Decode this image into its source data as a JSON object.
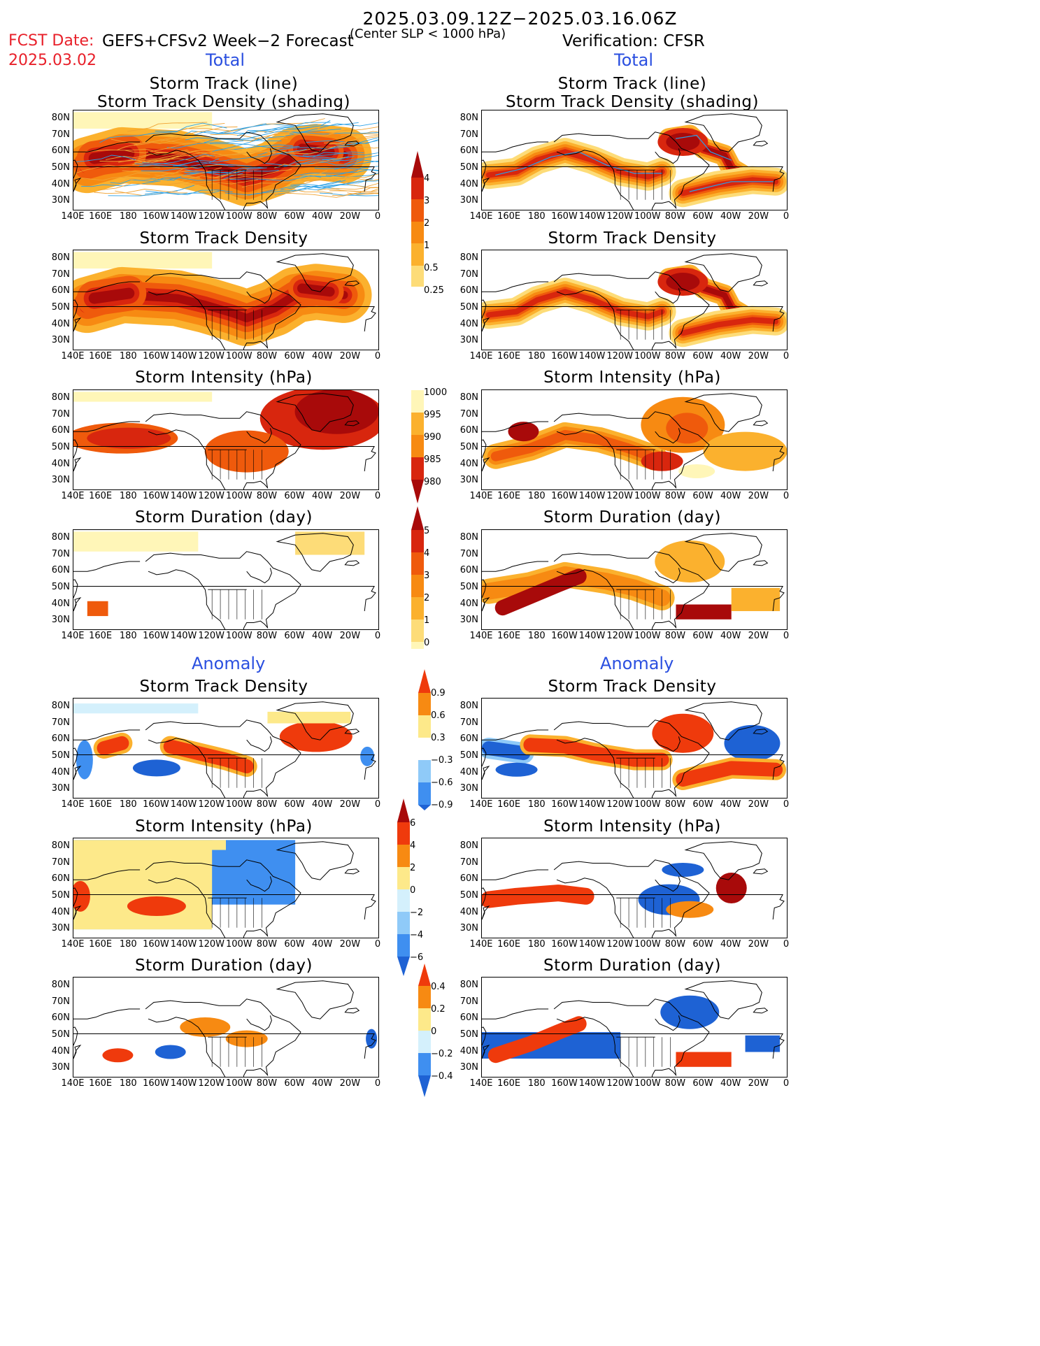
{
  "header": {
    "period": "2025.03.09.12Z−2025.03.16.06Z",
    "fcst_label": "FCST Date:",
    "fcst_date": "2025.03.02",
    "model": "GEFS+CFSv2 Week−2 Forecast",
    "criterion": "(Center SLP < 1000 hPa)",
    "verification": "Verification: CFSR"
  },
  "sections": {
    "total": "Total",
    "anomaly": "Anomaly"
  },
  "panel_titles": {
    "track_line": "Storm Track (line)",
    "track_shading": "Storm Track Density (shading)",
    "density": "Storm Track Density",
    "intensity": "Storm Intensity (hPa)",
    "duration": "Storm Duration (day)"
  },
  "axes": {
    "lat_labels": [
      "80N",
      "70N",
      "60N",
      "50N",
      "40N",
      "30N"
    ],
    "lon_labels": [
      "140E",
      "160E",
      "180",
      "160W",
      "140W",
      "120W",
      "100W",
      "80W",
      "60W",
      "40W",
      "20W",
      "0"
    ]
  },
  "colorbars": {
    "density_total": [
      "4",
      "3",
      "2",
      "1",
      "0.5",
      "0.25"
    ],
    "intensity_total": [
      "1000",
      "995",
      "990",
      "985",
      "980"
    ],
    "duration_total": [
      "5",
      "4",
      "3",
      "2",
      "1",
      "0"
    ],
    "density_anom": [
      "0.9",
      "0.6",
      "0.3",
      "−0.3",
      "−0.6",
      "−0.9"
    ],
    "intensity_anom": [
      "6",
      "4",
      "2",
      "0",
      "−2",
      "−4",
      "−6"
    ],
    "duration_anom": [
      "0.4",
      "0.2",
      "0",
      "−0.2",
      "−0.4"
    ]
  },
  "colors": {
    "total_scale": [
      "#fff6b8",
      "#fddc78",
      "#fbb12e",
      "#f78a12",
      "#ef5a0c",
      "#d8260e",
      "#a80a0a"
    ],
    "anom_scale": [
      "#1e62d4",
      "#3f8ff0",
      "#8fcaf8",
      "#d4f0fc",
      "#ffffff",
      "#fde98a",
      "#fbb12e",
      "#f78a12",
      "#ef3a0c"
    ],
    "track_gefs": "#f0a232",
    "track_line": "#2aa0e6",
    "fcst_text": "#e8202a",
    "section_text": "#2a4fe0"
  }
}
